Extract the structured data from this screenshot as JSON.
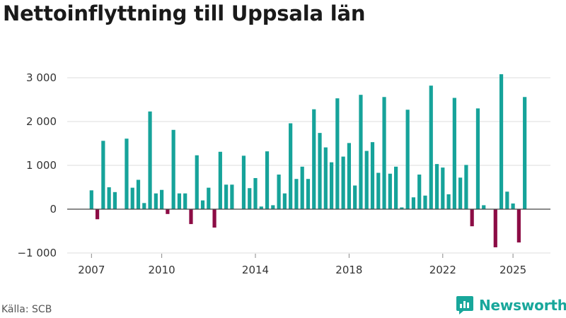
{
  "title": "Nettoinflyttning till Uppsala län",
  "source": "Källa: SCB",
  "brand": "Newsworthy",
  "colors": {
    "positive": "#16a39a",
    "negative": "#8c0c45",
    "grid": "#dddddd",
    "zero": "#444444"
  },
  "chart_data": {
    "type": "bar",
    "title": "Nettoinflyttning till Uppsala län",
    "xlabel": "",
    "ylabel": "",
    "ylim": [
      -1000,
      3200
    ],
    "yticks": [
      -1000,
      0,
      1000,
      2000,
      3000
    ],
    "ytick_labels": [
      "−1 000",
      "0",
      "1 000",
      "2 000",
      "3 000"
    ],
    "xticks": [
      2007,
      2010,
      2014,
      2018,
      2022,
      2025
    ],
    "x_start": 2007.0,
    "period": "quarter",
    "values": [
      430,
      -230,
      1560,
      500,
      390,
      null,
      1610,
      490,
      670,
      140,
      2230,
      360,
      440,
      -110,
      1810,
      360,
      360,
      -340,
      1230,
      200,
      490,
      -420,
      1310,
      560,
      560,
      null,
      1220,
      480,
      710,
      60,
      1320,
      90,
      790,
      360,
      1960,
      690,
      970,
      690,
      2280,
      1740,
      1410,
      1070,
      2530,
      1200,
      1510,
      540,
      2610,
      1330,
      1530,
      830,
      2560,
      810,
      970,
      40,
      2270,
      270,
      790,
      310,
      2820,
      1030,
      950,
      340,
      2540,
      720,
      1010,
      -390,
      2300,
      90,
      null,
      -870,
      3080,
      400,
      130,
      -760,
      2560
    ]
  }
}
